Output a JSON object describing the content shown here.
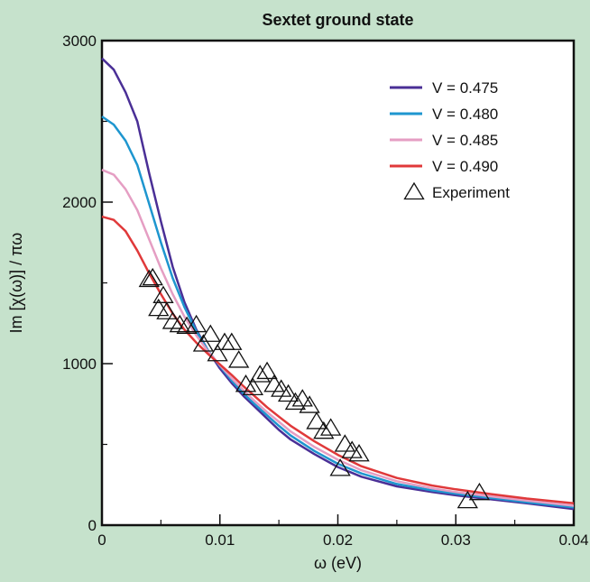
{
  "chart_data": {
    "type": "line",
    "title": "Sextet ground state",
    "xlabel": "ω (eV)",
    "ylabel": "Im [χ(ω)] / πω",
    "xlim": [
      0,
      0.04
    ],
    "ylim": [
      0,
      3000
    ],
    "xticks": [
      0,
      0.01,
      0.02,
      0.03,
      0.04
    ],
    "xtick_labels": [
      "0",
      "0.01",
      "0.02",
      "0.03",
      "0.04"
    ],
    "yticks": [
      0,
      1000,
      2000,
      3000
    ],
    "ytick_labels": [
      "0",
      "1000",
      "2000",
      "3000"
    ],
    "grid": false,
    "legend_position": "top-right",
    "series": [
      {
        "name": "V = 0.475",
        "color": "#4a2f96",
        "x": [
          0,
          0.001,
          0.002,
          0.003,
          0.004,
          0.005,
          0.006,
          0.007,
          0.008,
          0.009,
          0.01,
          0.011,
          0.012,
          0.013,
          0.014,
          0.015,
          0.016,
          0.018,
          0.02,
          0.022,
          0.025,
          0.028,
          0.03,
          0.033,
          0.036,
          0.04
        ],
        "y": [
          2890,
          2820,
          2680,
          2500,
          2180,
          1880,
          1600,
          1380,
          1210,
          1080,
          970,
          880,
          800,
          730,
          660,
          590,
          530,
          440,
          360,
          300,
          240,
          205,
          185,
          160,
          135,
          100
        ]
      },
      {
        "name": "V = 0.480",
        "color": "#1e96cf",
        "x": [
          0,
          0.001,
          0.002,
          0.003,
          0.004,
          0.005,
          0.006,
          0.007,
          0.008,
          0.009,
          0.01,
          0.011,
          0.012,
          0.013,
          0.014,
          0.015,
          0.016,
          0.018,
          0.02,
          0.022,
          0.025,
          0.028,
          0.03,
          0.033,
          0.036,
          0.04
        ],
        "y": [
          2530,
          2480,
          2380,
          2230,
          1990,
          1750,
          1530,
          1350,
          1200,
          1080,
          985,
          895,
          815,
          745,
          680,
          615,
          555,
          460,
          380,
          320,
          255,
          215,
          195,
          168,
          142,
          110
        ]
      },
      {
        "name": "V = 0.485",
        "color": "#e59ec3",
        "x": [
          0,
          0.001,
          0.002,
          0.003,
          0.004,
          0.005,
          0.006,
          0.007,
          0.008,
          0.009,
          0.01,
          0.011,
          0.012,
          0.013,
          0.014,
          0.015,
          0.016,
          0.018,
          0.02,
          0.022,
          0.025,
          0.028,
          0.03,
          0.033,
          0.036,
          0.04
        ],
        "y": [
          2200,
          2170,
          2080,
          1950,
          1770,
          1590,
          1430,
          1290,
          1175,
          1075,
          990,
          910,
          835,
          765,
          700,
          640,
          580,
          485,
          405,
          340,
          272,
          228,
          205,
          178,
          152,
          120
        ]
      },
      {
        "name": "V = 0.490",
        "color": "#e0393a",
        "x": [
          0,
          0.001,
          0.002,
          0.003,
          0.004,
          0.005,
          0.006,
          0.007,
          0.008,
          0.009,
          0.01,
          0.011,
          0.012,
          0.013,
          0.014,
          0.015,
          0.016,
          0.018,
          0.02,
          0.022,
          0.025,
          0.028,
          0.03,
          0.033,
          0.036,
          0.04
        ],
        "y": [
          1910,
          1890,
          1820,
          1700,
          1560,
          1430,
          1310,
          1210,
          1130,
          1060,
          995,
          930,
          860,
          795,
          730,
          672,
          615,
          520,
          435,
          365,
          292,
          245,
          222,
          192,
          165,
          135
        ]
      },
      {
        "name": "Experiment",
        "marker": "open-triangle",
        "x": [
          0.004,
          0.0043,
          0.0048,
          0.0052,
          0.0055,
          0.006,
          0.0066,
          0.0072,
          0.008,
          0.0086,
          0.0092,
          0.0098,
          0.0104,
          0.011,
          0.0116,
          0.0122,
          0.0128,
          0.0134,
          0.014,
          0.0146,
          0.0152,
          0.0158,
          0.0164,
          0.017,
          0.0176,
          0.0182,
          0.0188,
          0.0194,
          0.0202,
          0.0206,
          0.0212,
          0.0218,
          0.031,
          0.032
        ],
        "y": [
          1520,
          1530,
          1340,
          1420,
          1320,
          1260,
          1240,
          1230,
          1240,
          1120,
          1180,
          1060,
          1130,
          1130,
          1020,
          870,
          850,
          930,
          950,
          870,
          840,
          810,
          760,
          780,
          740,
          640,
          580,
          600,
          350,
          500,
          460,
          440,
          150,
          200
        ]
      }
    ]
  }
}
